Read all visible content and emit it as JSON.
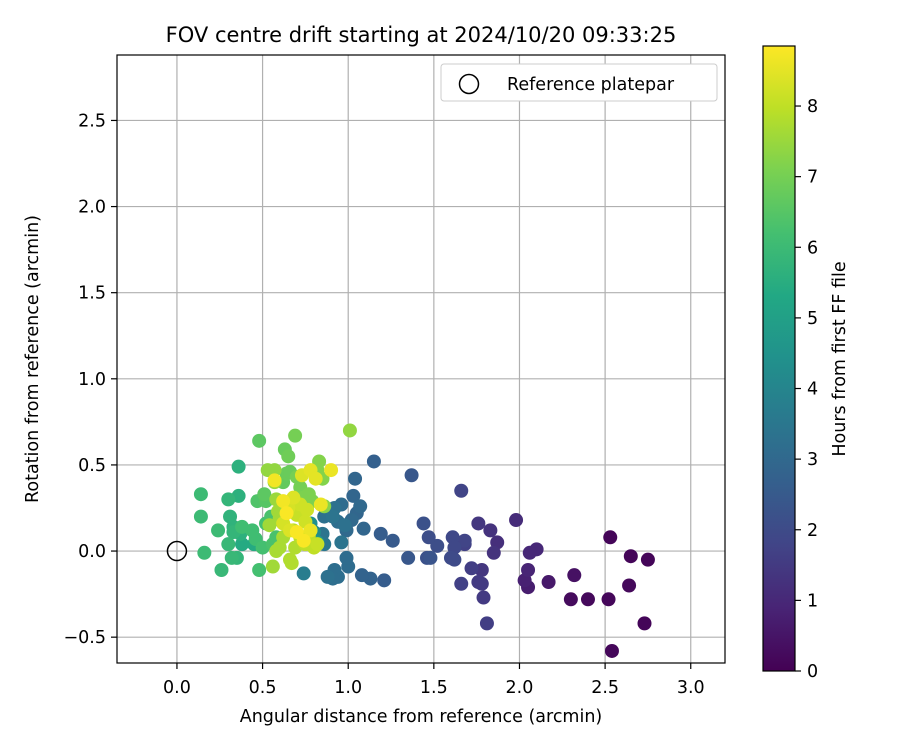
{
  "chart_data": {
    "type": "scatter",
    "title": "FOV centre drift starting at 2024/10/20 09:33:25",
    "xlabel": "Angular distance from reference (arcmin)",
    "ylabel": "Rotation from reference (arcmin)",
    "xlim": [
      -0.35,
      3.2
    ],
    "ylim": [
      -0.65,
      2.88
    ],
    "xticks": [
      0.0,
      0.5,
      1.0,
      1.5,
      2.0,
      2.5,
      3.0
    ],
    "xtick_labels": [
      "0.0",
      "0.5",
      "1.0",
      "1.5",
      "2.0",
      "2.5",
      "3.0"
    ],
    "yticks": [
      -0.5,
      0.0,
      0.5,
      1.0,
      1.5,
      2.0,
      2.5
    ],
    "ytick_labels": [
      "−0.5",
      "0.0",
      "0.5",
      "1.0",
      "1.5",
      "2.0",
      "2.5"
    ],
    "grid": true,
    "colormap": "viridis",
    "colorbar": {
      "label": "Hours from first FF file",
      "range": [
        0,
        8.85
      ],
      "ticks": [
        0,
        1,
        2,
        3,
        4,
        5,
        6,
        7,
        8
      ],
      "tick_labels": [
        "0",
        "1",
        "2",
        "3",
        "4",
        "5",
        "6",
        "7",
        "8"
      ]
    },
    "legend": {
      "placement": "top-right",
      "label": "Reference platepar"
    },
    "reference_point": [
      0.0,
      0.0
    ],
    "points": [
      [
        2.53,
        0.08,
        0.1
      ],
      [
        2.65,
        -0.03,
        0.1
      ],
      [
        2.75,
        -0.05,
        0.1
      ],
      [
        2.73,
        -0.42,
        0.1
      ],
      [
        2.54,
        -0.58,
        0.15
      ],
      [
        2.52,
        -0.28,
        0.15
      ],
      [
        2.4,
        -0.28,
        0.2
      ],
      [
        2.3,
        -0.28,
        0.25
      ],
      [
        2.64,
        -0.2,
        0.2
      ],
      [
        2.32,
        -0.14,
        0.4
      ],
      [
        2.17,
        -0.18,
        0.6
      ],
      [
        2.05,
        -0.21,
        0.7
      ],
      [
        2.03,
        -0.17,
        0.8
      ],
      [
        2.05,
        -0.11,
        0.9
      ],
      [
        2.1,
        0.01,
        1.0
      ],
      [
        2.06,
        -0.01,
        1.0
      ],
      [
        1.98,
        0.18,
        1.1
      ],
      [
        1.87,
        0.05,
        1.2
      ],
      [
        1.85,
        -0.01,
        1.3
      ],
      [
        1.83,
        0.12,
        1.3
      ],
      [
        1.76,
        0.16,
        1.4
      ],
      [
        1.78,
        -0.11,
        1.4
      ],
      [
        1.76,
        -0.18,
        1.5
      ],
      [
        1.78,
        -0.19,
        1.5
      ],
      [
        1.79,
        -0.27,
        1.5
      ],
      [
        1.81,
        -0.42,
        1.6
      ],
      [
        1.72,
        -0.1,
        1.6
      ],
      [
        1.66,
        -0.19,
        1.7
      ],
      [
        1.68,
        0.04,
        1.7
      ],
      [
        1.68,
        0.06,
        1.8
      ],
      [
        1.66,
        0.35,
        1.8
      ],
      [
        1.61,
        0.08,
        1.9
      ],
      [
        1.62,
        0.02,
        1.9
      ],
      [
        1.6,
        -0.04,
        2.0
      ],
      [
        1.62,
        -0.05,
        2.0
      ],
      [
        1.52,
        0.03,
        2.1
      ],
      [
        1.47,
        0.08,
        2.1
      ],
      [
        1.44,
        0.16,
        2.2
      ],
      [
        1.46,
        -0.04,
        2.2
      ],
      [
        1.48,
        -0.04,
        2.3
      ],
      [
        1.35,
        -0.04,
        2.4
      ],
      [
        1.37,
        0.44,
        2.4
      ],
      [
        1.26,
        0.06,
        2.5
      ],
      [
        1.19,
        0.1,
        2.6
      ],
      [
        1.21,
        -0.17,
        2.6
      ],
      [
        1.15,
        0.52,
        2.7
      ],
      [
        1.13,
        -0.16,
        2.8
      ],
      [
        1.08,
        -0.14,
        2.8
      ],
      [
        1.09,
        0.13,
        2.9
      ],
      [
        1.05,
        0.22,
        2.9
      ],
      [
        1.03,
        0.32,
        2.9
      ],
      [
        1.04,
        0.42,
        2.9
      ],
      [
        1.07,
        0.26,
        3.0
      ],
      [
        1.02,
        0.18,
        3.0
      ],
      [
        0.99,
        0.12,
        3.0
      ],
      [
        1.0,
        -0.09,
        3.1
      ],
      [
        0.99,
        -0.04,
        3.1
      ],
      [
        0.96,
        0.27,
        3.1
      ],
      [
        0.94,
        0.17,
        3.2
      ],
      [
        0.94,
        -0.15,
        3.2
      ],
      [
        0.92,
        -0.11,
        3.2
      ],
      [
        0.91,
        -0.16,
        3.2
      ],
      [
        0.88,
        -0.15,
        3.3
      ],
      [
        0.86,
        0.2,
        3.3
      ],
      [
        0.85,
        0.1,
        3.4
      ],
      [
        0.91,
        0.2,
        3.4
      ],
      [
        0.92,
        0.25,
        3.3
      ],
      [
        0.98,
        0.15,
        3.3
      ],
      [
        0.96,
        0.05,
        3.4
      ],
      [
        0.86,
        0.04,
        3.5
      ],
      [
        0.74,
        -0.13,
        3.7
      ],
      [
        0.8,
        0.11,
        4.2
      ],
      [
        0.78,
        0.16,
        4.4
      ],
      [
        0.82,
        0.05,
        4.6
      ],
      [
        0.45,
        0.04,
        5.4
      ],
      [
        0.38,
        0.04,
        5.4
      ],
      [
        0.36,
        0.49,
        5.6
      ],
      [
        0.36,
        0.32,
        5.6
      ],
      [
        0.37,
        0.1,
        5.6
      ],
      [
        0.33,
        0.14,
        5.7
      ],
      [
        0.31,
        0.2,
        5.7
      ],
      [
        0.33,
        0.11,
        5.8
      ],
      [
        0.3,
        0.3,
        5.8
      ],
      [
        0.35,
        -0.04,
        5.8
      ],
      [
        0.3,
        0.04,
        5.9
      ],
      [
        0.32,
        -0.04,
        5.9
      ],
      [
        0.26,
        -0.11,
        5.9
      ],
      [
        0.24,
        0.12,
        6.0
      ],
      [
        0.16,
        -0.01,
        6.0
      ],
      [
        0.14,
        0.33,
        6.0
      ],
      [
        0.14,
        0.2,
        6.0
      ],
      [
        0.38,
        0.14,
        6.1
      ],
      [
        0.46,
        0.07,
        6.1
      ],
      [
        0.44,
        0.12,
        6.1
      ],
      [
        0.48,
        -0.11,
        6.2
      ],
      [
        0.5,
        0.02,
        6.2
      ],
      [
        0.52,
        0.16,
        6.2
      ],
      [
        0.55,
        0.2,
        6.3
      ],
      [
        0.58,
        0.08,
        6.3
      ],
      [
        0.56,
        0.04,
        6.3
      ],
      [
        0.47,
        0.29,
        6.4
      ],
      [
        0.52,
        0.29,
        6.5
      ],
      [
        0.48,
        0.64,
        6.6
      ],
      [
        0.51,
        0.33,
        6.6
      ],
      [
        0.6,
        0.18,
        6.7
      ],
      [
        0.62,
        0.4,
        6.7
      ],
      [
        0.64,
        0.45,
        6.8
      ],
      [
        0.66,
        0.46,
        6.8
      ],
      [
        0.63,
        0.59,
        6.8
      ],
      [
        0.65,
        0.55,
        6.9
      ],
      [
        0.69,
        0.67,
        7.0
      ],
      [
        0.7,
        0.43,
        7.0
      ],
      [
        0.72,
        0.37,
        7.0
      ],
      [
        0.74,
        0.31,
        7.1
      ],
      [
        0.77,
        0.33,
        7.1
      ],
      [
        0.79,
        0.29,
        7.1
      ],
      [
        0.83,
        0.52,
        7.2
      ],
      [
        0.82,
        0.47,
        7.2
      ],
      [
        0.85,
        0.42,
        7.2
      ],
      [
        0.86,
        0.26,
        7.3
      ],
      [
        1.01,
        0.7,
        7.4
      ],
      [
        0.57,
        0.47,
        7.4
      ],
      [
        0.53,
        0.47,
        7.4
      ],
      [
        0.57,
        0.4,
        7.5
      ],
      [
        0.58,
        0.3,
        7.5
      ],
      [
        0.59,
        0.23,
        7.6
      ],
      [
        0.6,
        0.19,
        7.6
      ],
      [
        0.54,
        0.15,
        7.6
      ],
      [
        0.56,
        -0.09,
        7.6
      ],
      [
        0.58,
        0.0,
        7.7
      ],
      [
        0.6,
        0.02,
        7.7
      ],
      [
        0.62,
        0.08,
        7.7
      ],
      [
        0.66,
        -0.05,
        7.8
      ],
      [
        0.67,
        -0.07,
        7.8
      ],
      [
        0.69,
        0.02,
        7.8
      ],
      [
        0.72,
        0.08,
        7.9
      ],
      [
        0.68,
        0.12,
        7.9
      ],
      [
        0.75,
        0.04,
        8.0
      ],
      [
        0.77,
        0.09,
        8.0
      ],
      [
        0.8,
        0.02,
        8.0
      ],
      [
        0.82,
        0.04,
        8.1
      ],
      [
        0.7,
        0.21,
        8.1
      ],
      [
        0.75,
        0.17,
        8.2
      ],
      [
        0.76,
        0.24,
        8.2
      ],
      [
        0.72,
        0.27,
        8.2
      ],
      [
        0.65,
        0.25,
        8.3
      ],
      [
        0.62,
        0.16,
        8.3
      ],
      [
        0.66,
        0.12,
        8.4
      ],
      [
        0.68,
        0.31,
        8.4
      ],
      [
        0.73,
        0.44,
        8.4
      ],
      [
        0.78,
        0.47,
        8.5
      ],
      [
        0.81,
        0.42,
        8.5
      ],
      [
        0.84,
        0.27,
        8.6
      ],
      [
        0.9,
        0.47,
        8.6
      ],
      [
        0.78,
        0.12,
        8.6
      ],
      [
        0.62,
        0.29,
        8.7
      ],
      [
        0.57,
        0.41,
        8.7
      ],
      [
        0.64,
        0.22,
        8.8
      ],
      [
        0.74,
        0.06,
        8.8
      ],
      [
        0.7,
        0.11,
        8.8
      ]
    ]
  }
}
